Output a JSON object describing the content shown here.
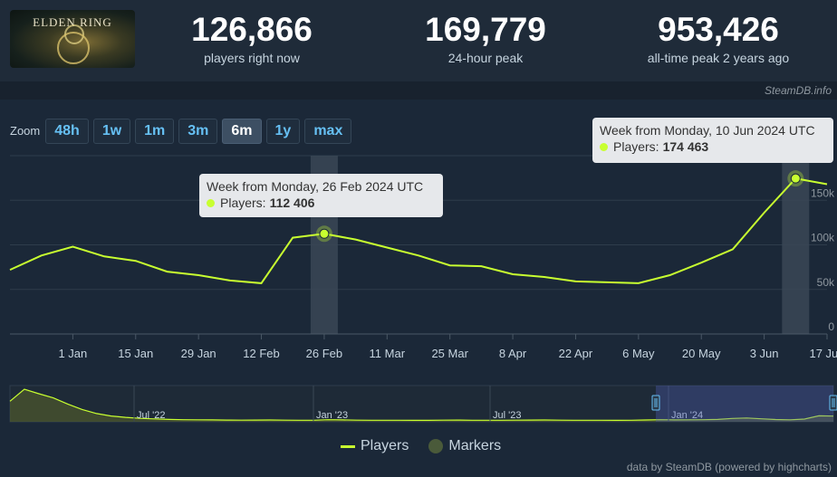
{
  "header": {
    "logo_text": "ELDEN RING",
    "stats": [
      {
        "value": "126,866",
        "label": "players right now"
      },
      {
        "value": "169,779",
        "label": "24-hour peak"
      },
      {
        "value": "953,426",
        "label": "all-time peak 2 years ago"
      }
    ]
  },
  "watermark": "SteamDB.info",
  "zoom": {
    "label": "Zoom",
    "buttons": [
      "48h",
      "1w",
      "1m",
      "3m",
      "6m",
      "1y",
      "max"
    ],
    "active": "6m"
  },
  "tooltips": [
    {
      "title": "Week from Monday, 26 Feb 2024 UTC",
      "series": "Players:",
      "value": "112 406"
    },
    {
      "title": "Week from Monday, 10 Jun 2024 UTC",
      "series": "Players:",
      "value": "174 463"
    }
  ],
  "legend": {
    "players": "Players",
    "markers": "Markers"
  },
  "credits": "data by SteamDB (powered by highcharts)",
  "colors": {
    "line": "#c8ff30",
    "background": "#1b2838",
    "accent": "#66c0f4"
  },
  "chart_data": [
    {
      "type": "line",
      "name": "main",
      "x": [
        "18 Dec",
        "25 Dec",
        "1 Jan",
        "8 Jan",
        "15 Jan",
        "22 Jan",
        "29 Jan",
        "5 Feb",
        "12 Feb",
        "19 Feb",
        "26 Feb",
        "4 Mar",
        "11 Mar",
        "18 Mar",
        "25 Mar",
        "1 Apr",
        "8 Apr",
        "15 Apr",
        "22 Apr",
        "29 Apr",
        "6 May",
        "13 May",
        "20 May",
        "27 May",
        "3 Jun",
        "10 Jun",
        "17 Jun"
      ],
      "series": [
        {
          "name": "Players",
          "values": [
            72000,
            88000,
            98000,
            87000,
            82000,
            70000,
            66000,
            60000,
            57000,
            108000,
            112406,
            106000,
            97000,
            88000,
            77000,
            76000,
            67000,
            64000,
            59000,
            58000,
            57000,
            66000,
            80000,
            95000,
            136000,
            174463,
            168000
          ]
        }
      ],
      "xticks": [
        "1 Jan",
        "15 Jan",
        "29 Jan",
        "12 Feb",
        "26 Feb",
        "11 Mar",
        "25 Mar",
        "8 Apr",
        "22 Apr",
        "6 May",
        "20 May",
        "3 Jun",
        "17 Jun"
      ],
      "yticks": [
        "0",
        "50k",
        "100k",
        "150k"
      ],
      "ylim": [
        0,
        200000
      ],
      "grid": true,
      "highlighted_points": [
        "26 Feb",
        "10 Jun"
      ]
    },
    {
      "type": "area",
      "name": "navigator",
      "xticks": [
        "Jul '22",
        "Jan '23",
        "Jul '23",
        "Jan '24"
      ],
      "values": [
        600000,
        953426,
        820000,
        700000,
        520000,
        360000,
        240000,
        170000,
        130000,
        100000,
        85000,
        70000,
        62000,
        58000,
        55000,
        50000,
        48000,
        50000,
        52000,
        47000,
        45000,
        44000,
        60000,
        55000,
        48000,
        46000,
        45000,
        44000,
        43000,
        42000,
        48000,
        50000,
        46000,
        45000,
        44000,
        47000,
        50000,
        52000,
        48000,
        46000,
        45000,
        44000,
        43000,
        44000,
        52000,
        60000,
        56000,
        58000,
        60000,
        70000,
        98000,
        112000,
        88000,
        65000,
        58000,
        80000,
        174463,
        168000
      ]
    }
  ]
}
